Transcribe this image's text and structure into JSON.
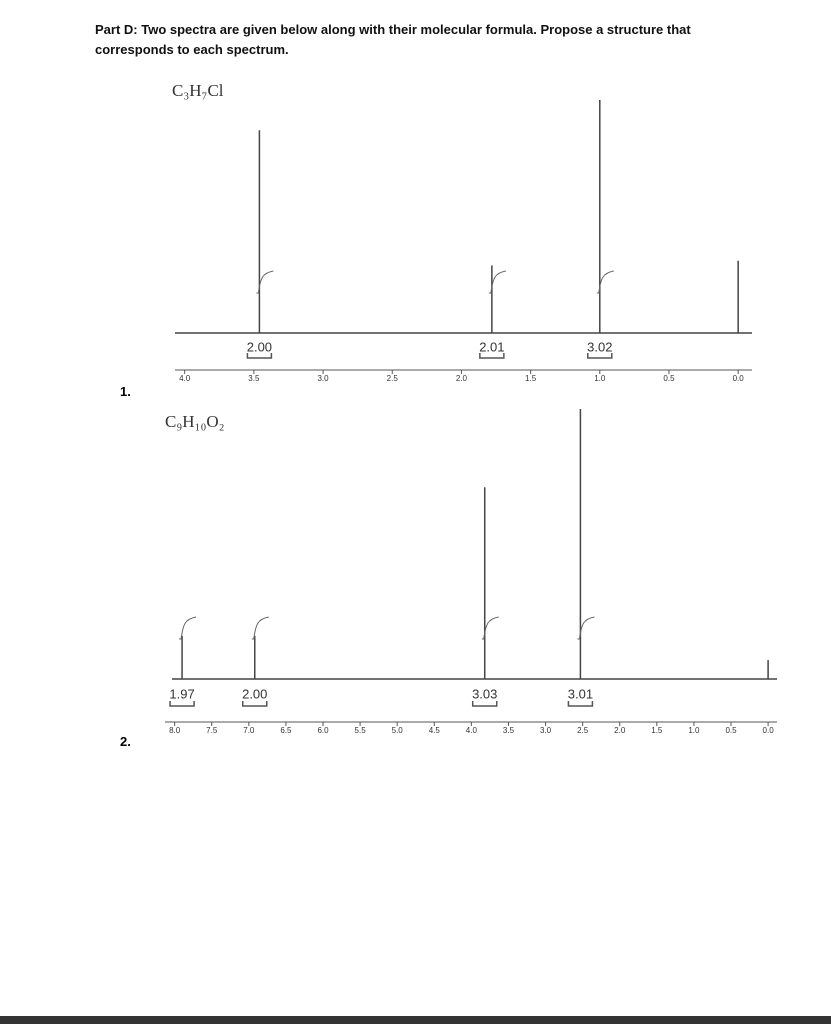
{
  "header": {
    "lines": [
      "Part D: Two spectra are given below along with their molecular formula. Propose a structure that",
      "corresponds to each spectrum."
    ]
  },
  "problem_numbers": [
    "1.",
    "2."
  ],
  "chart_data": [
    {
      "type": "spectrum",
      "title": "C₃H₇Cl",
      "x": [
        3.46,
        1.78,
        1.0,
        0.0
      ],
      "values": [
        87,
        29,
        100,
        31
      ],
      "xlim": [
        4.07,
        -0.1
      ],
      "xticks": [
        {
          "value": 4,
          "label": "4.0"
        },
        {
          "value": 3.5,
          "label": "3.5"
        },
        {
          "value": 3,
          "label": "3.0"
        },
        {
          "value": 2.5,
          "label": "2.5"
        },
        {
          "value": 2,
          "label": "2.0"
        },
        {
          "value": 1.5,
          "label": "1.5"
        },
        {
          "value": 1,
          "label": "1.0"
        },
        {
          "value": 0.5,
          "label": "0.5"
        },
        {
          "value": 0,
          "label": "0.0"
        }
      ],
      "integrals": {
        "x": [
          3.46,
          1.78,
          1.0
        ],
        "values": [
          2,
          2.01,
          3.02
        ],
        "value_labels": [
          "2.00",
          "2.01",
          "3.02"
        ]
      },
      "color": "#444"
    },
    {
      "type": "spectrum",
      "title": "C₉H₁₀O₂",
      "x": [
        7.9,
        6.92,
        3.82,
        2.53,
        0.0
      ],
      "values": [
        16,
        16,
        71,
        100,
        7
      ],
      "xlim": [
        8.13,
        -0.12
      ],
      "xticks": [
        {
          "value": 8,
          "label": "8.0"
        },
        {
          "value": 7.5,
          "label": "7.5"
        },
        {
          "value": 7,
          "label": "7.0"
        },
        {
          "value": 6.5,
          "label": "6.5"
        },
        {
          "value": 6,
          "label": "6.0"
        },
        {
          "value": 5.5,
          "label": "5.5"
        },
        {
          "value": 5,
          "label": "5.0"
        },
        {
          "value": 4.5,
          "label": "4.5"
        },
        {
          "value": 4,
          "label": "4.0"
        },
        {
          "value": 3.5,
          "label": "3.5"
        },
        {
          "value": 3,
          "label": "3.0"
        },
        {
          "value": 2.5,
          "label": "2.5"
        },
        {
          "value": 2,
          "label": "2.0"
        },
        {
          "value": 1.5,
          "label": "1.5"
        },
        {
          "value": 1,
          "label": "1.0"
        },
        {
          "value": 0.5,
          "label": "0.5"
        },
        {
          "value": 0,
          "label": "0.0"
        }
      ],
      "integrals": {
        "x": [
          7.9,
          6.92,
          3.82,
          2.53
        ],
        "values": [
          1.97,
          2,
          3.03,
          3.01
        ],
        "value_labels": [
          "1.97",
          "2.00",
          "3.03",
          "3.01"
        ]
      },
      "color": "#444"
    }
  ]
}
